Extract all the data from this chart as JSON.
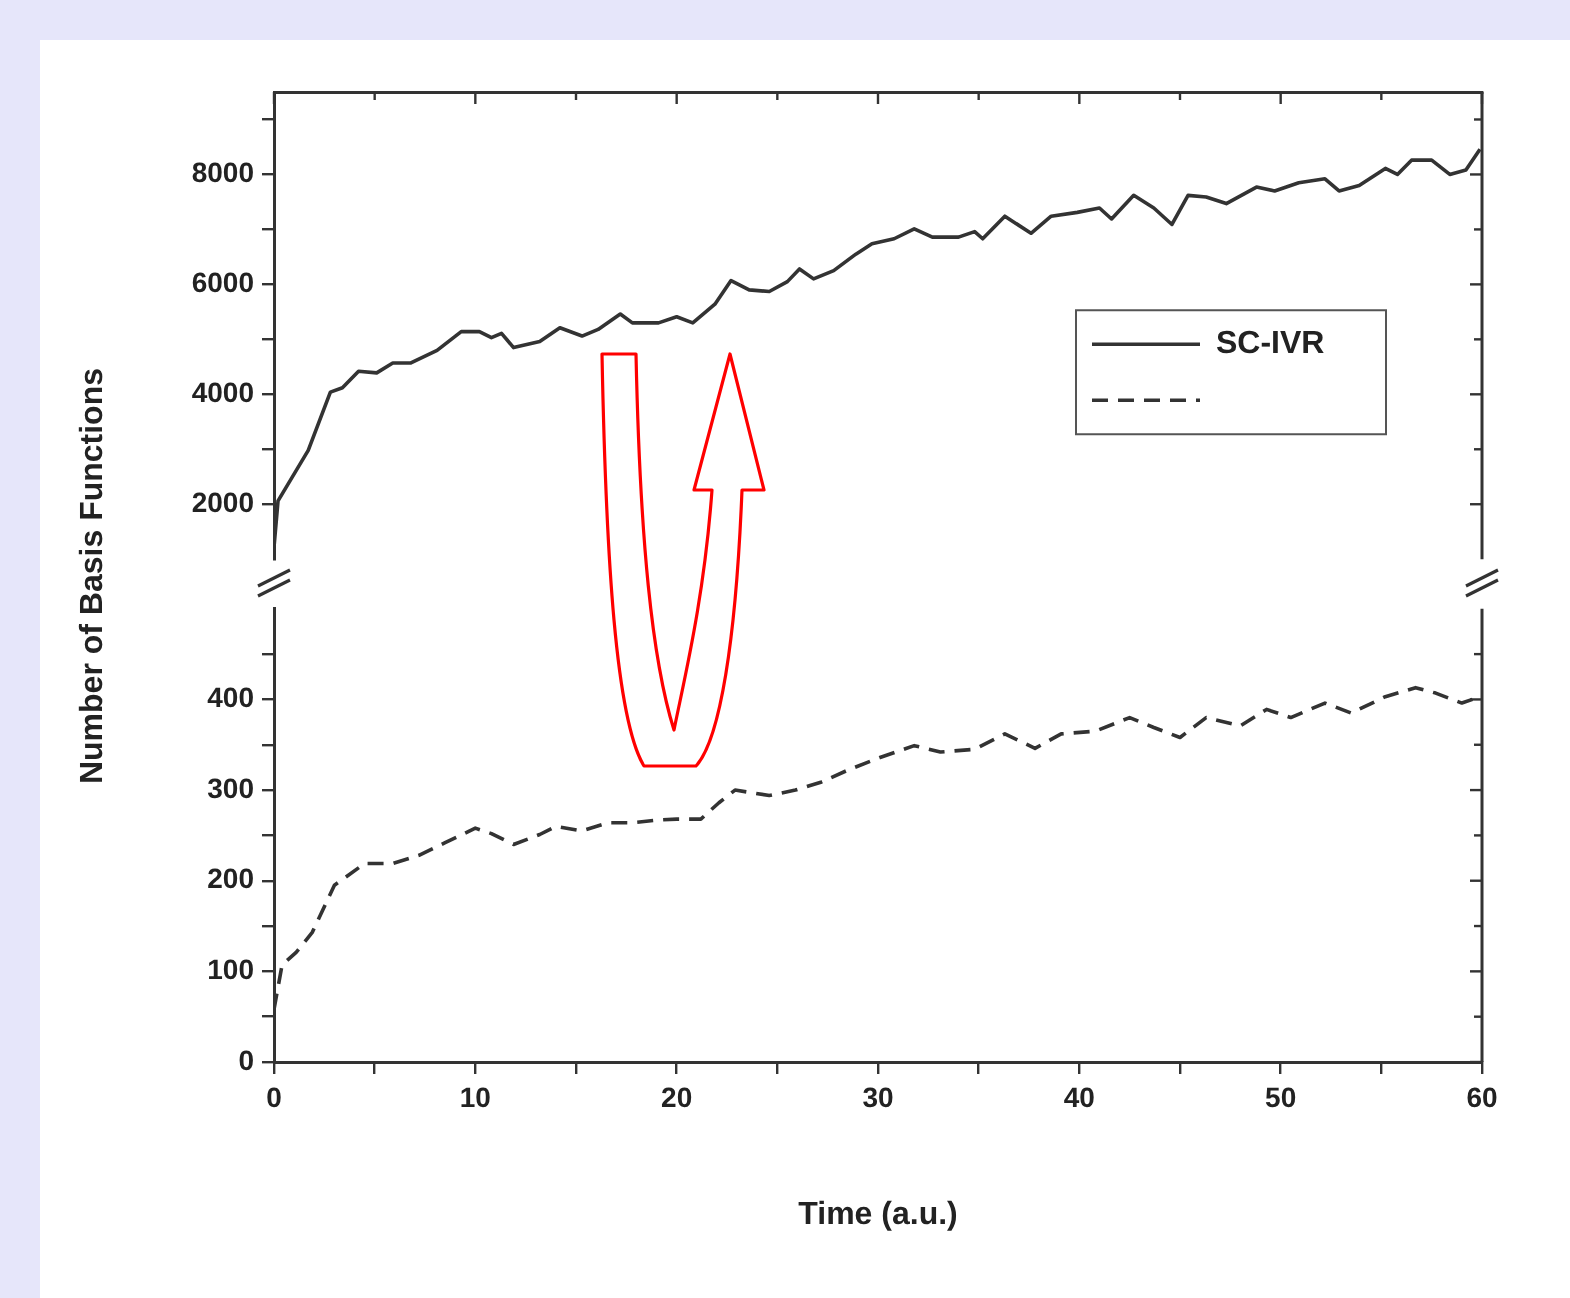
{
  "chart_data": [
    {
      "type": "line",
      "ylabel": "Number of Basis Functions",
      "xlim": [
        0,
        60
      ],
      "xticks": [
        0,
        {
          "value": 5,
          "label": null
        },
        10,
        {
          "value": 15,
          "label": null
        },
        20,
        {
          "value": 25,
          "label": null
        },
        30,
        {
          "value": 35,
          "label": null
        },
        40,
        {
          "value": 45,
          "label": null
        },
        50,
        {
          "value": 55,
          "label": null
        },
        60
      ],
      "ylim": [
        1000,
        9500
      ],
      "yticks": [
        2000,
        {
          "value": 3000,
          "label": null
        },
        4000,
        {
          "value": 5000,
          "label": null
        },
        6000,
        {
          "value": 7000,
          "label": null
        },
        8000,
        {
          "value": 9000,
          "label": null
        }
      ],
      "tick_labels": "y",
      "legend": "right",
      "line_style": "solid",
      "marker": "none",
      "series": [
        {
          "name": "SC-IVR",
          "color": "#333333",
          "x": [
            0,
            0.2,
            1.7,
            2.8,
            3.4,
            4.2,
            5.1,
            5.9,
            6.8,
            8.1,
            9.3,
            10.2,
            10.8,
            11.3,
            11.9,
            13.2,
            14.2,
            15.3,
            16.1,
            17.2,
            17.8,
            19.1,
            20.0,
            20.8,
            21.9,
            22.7,
            23.6,
            24.6,
            25.5,
            26.1,
            26.8,
            27.8,
            28.9,
            29.7,
            30.8,
            31.8,
            32.7,
            34.0,
            34.8,
            35.2,
            36.3,
            37.6,
            38.6,
            39.9,
            41.0,
            41.6,
            42.7,
            43.7,
            44.6,
            45.4,
            46.3,
            47.3,
            48.8,
            49.7,
            50.9,
            52.2,
            52.9,
            53.9,
            55.2,
            55.8,
            56.5,
            57.5,
            58.4,
            59.2,
            59.9
          ],
          "values": [
            1220,
            2060,
            2980,
            4040,
            4120,
            4420,
            4390,
            4570,
            4570,
            4800,
            5140,
            5140,
            5030,
            5110,
            4850,
            4960,
            5210,
            5060,
            5180,
            5460,
            5300,
            5300,
            5410,
            5300,
            5640,
            6070,
            5900,
            5870,
            6050,
            6280,
            6100,
            6250,
            6550,
            6740,
            6830,
            7010,
            6860,
            6860,
            6960,
            6830,
            7240,
            6930,
            7240,
            7310,
            7390,
            7190,
            7620,
            7390,
            7090,
            7620,
            7590,
            7470,
            7770,
            7700,
            7850,
            7920,
            7700,
            7800,
            8110,
            8000,
            8260,
            8260,
            8000,
            8080,
            8460
          ]
        }
      ]
    },
    {
      "type": "line",
      "xlabel": "Time (a.u.)",
      "xlim": [
        0,
        60
      ],
      "xticks": [
        0,
        {
          "value": 5,
          "label": null
        },
        10,
        {
          "value": 15,
          "label": null
        },
        20,
        {
          "value": 25,
          "label": null
        },
        30,
        {
          "value": 35,
          "label": null
        },
        40,
        {
          "value": 45,
          "label": null
        },
        50,
        {
          "value": 55,
          "label": null
        },
        60
      ],
      "ylim": [
        0,
        500
      ],
      "yticks": [
        0,
        {
          "value": 50,
          "label": null
        },
        100,
        {
          "value": 150,
          "label": null
        },
        200,
        {
          "value": 250,
          "label": null
        },
        300,
        {
          "value": 350,
          "label": null
        },
        400,
        {
          "value": 450,
          "label": null
        }
      ],
      "line_style": "dashed",
      "marker": "none",
      "series": [
        {
          "color": "#333333",
          "x": [
            0,
            0.4,
            1.1,
            1.9,
            3.0,
            4.5,
            5.9,
            7.2,
            8.5,
            10.0,
            10.8,
            11.9,
            13.2,
            14.0,
            15.3,
            16.6,
            17.8,
            19.1,
            20.0,
            21.2,
            22.1,
            22.9,
            24.6,
            25.9,
            27.2,
            28.5,
            30.1,
            31.8,
            33.1,
            34.8,
            36.3,
            37.8,
            39.1,
            40.8,
            42.5,
            43.7,
            45.0,
            46.3,
            48.0,
            49.3,
            50.5,
            52.2,
            53.5,
            55.2,
            56.7,
            57.7,
            59.0,
            59.9
          ],
          "values": [
            58,
            107,
            121,
            143,
            195,
            219,
            219,
            228,
            242,
            258,
            252,
            240,
            251,
            260,
            255,
            264,
            264,
            267,
            268,
            268,
            286,
            300,
            294,
            300,
            309,
            322,
            336,
            349,
            342,
            345,
            362,
            346,
            362,
            365,
            380,
            369,
            358,
            380,
            371,
            389,
            380,
            396,
            385,
            403,
            413,
            407,
            396,
            403
          ]
        }
      ]
    }
  ]
}
